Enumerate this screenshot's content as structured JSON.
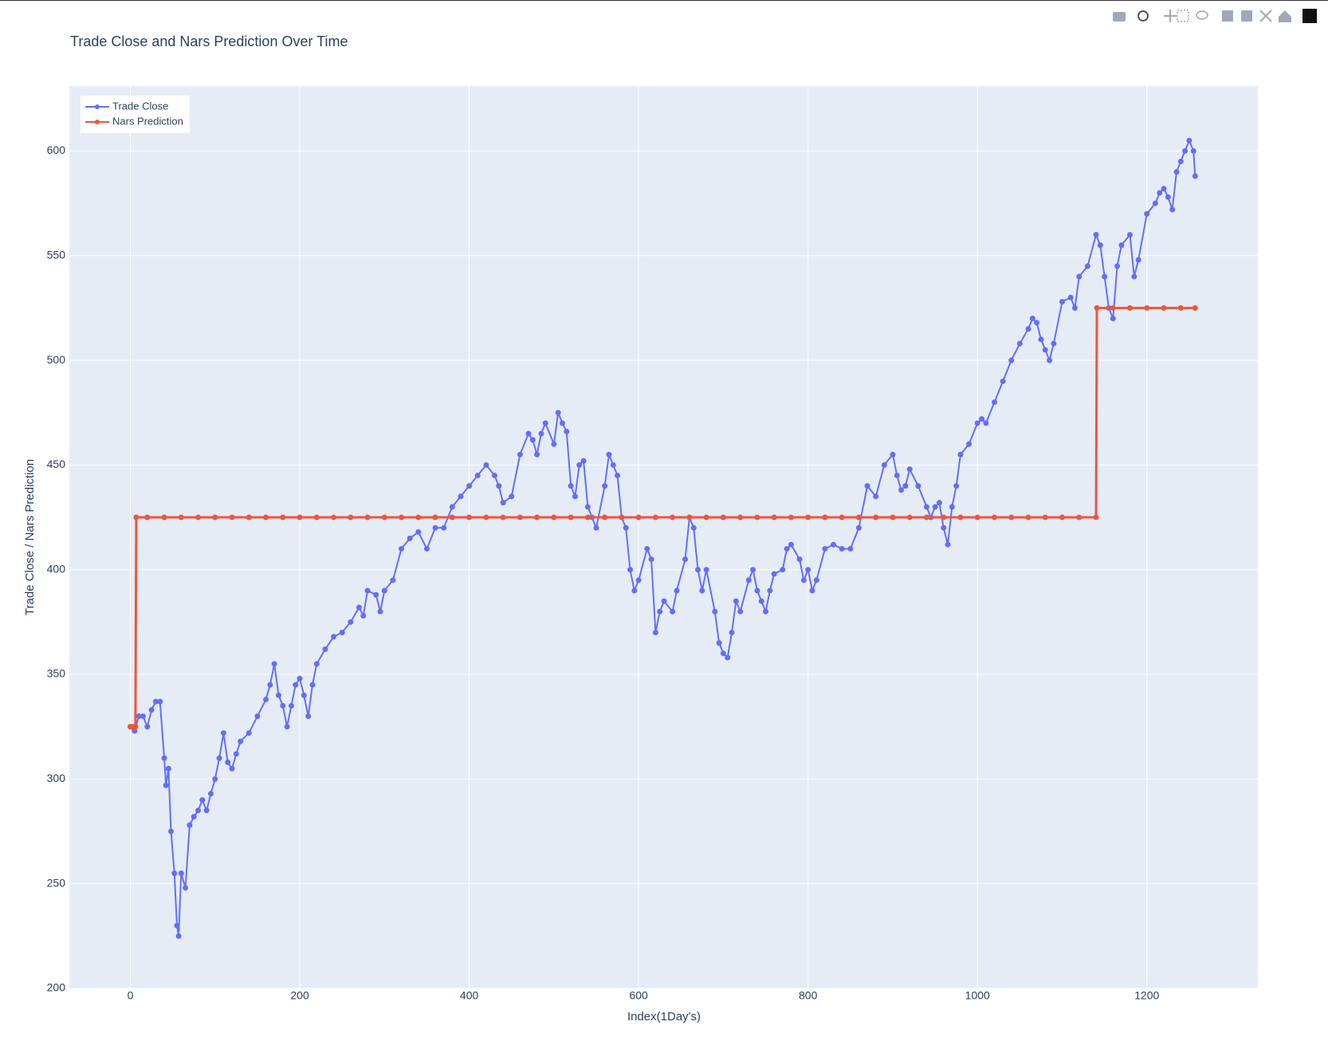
{
  "chart_data": {
    "type": "line",
    "title": "Trade Close and Nars Prediction Over Time",
    "x_label": "Index(1Day's)",
    "y_label": "Trade Close / Nars Prediction",
    "xlim": [
      -72,
      1331
    ],
    "xticks": [
      0,
      200,
      400,
      600,
      800,
      1000,
      1200
    ],
    "ylim": [
      200,
      631
    ],
    "yticks": [
      200,
      250,
      300,
      350,
      400,
      450,
      500,
      550,
      600
    ],
    "grid": true,
    "legend": "top-left",
    "series": [
      {
        "name": "Trade Close",
        "color": "#636efa",
        "x": [
          0,
          5,
          10,
          15,
          20,
          25,
          30,
          35,
          40,
          42,
          45,
          48,
          52,
          55,
          57,
          60,
          65,
          70,
          75,
          80,
          85,
          90,
          95,
          100,
          105,
          110,
          115,
          120,
          125,
          130,
          140,
          150,
          160,
          165,
          170,
          175,
          180,
          185,
          190,
          195,
          200,
          205,
          210,
          215,
          220,
          230,
          240,
          250,
          260,
          270,
          275,
          280,
          290,
          295,
          300,
          310,
          320,
          330,
          340,
          350,
          360,
          370,
          380,
          390,
          400,
          410,
          420,
          430,
          435,
          440,
          450,
          460,
          470,
          475,
          480,
          485,
          490,
          500,
          505,
          510,
          515,
          520,
          525,
          530,
          535,
          540,
          545,
          550,
          560,
          565,
          570,
          575,
          580,
          585,
          590,
          595,
          600,
          610,
          615,
          620,
          625,
          630,
          640,
          645,
          655,
          660,
          665,
          670,
          675,
          680,
          690,
          695,
          700,
          705,
          710,
          715,
          720,
          730,
          735,
          740,
          745,
          750,
          755,
          760,
          770,
          775,
          780,
          790,
          795,
          800,
          805,
          810,
          820,
          830,
          840,
          850,
          860,
          870,
          880,
          890,
          900,
          905,
          910,
          915,
          920,
          930,
          940,
          945,
          950,
          955,
          960,
          965,
          970,
          975,
          980,
          990,
          1000,
          1005,
          1010,
          1020,
          1030,
          1040,
          1050,
          1060,
          1065,
          1070,
          1075,
          1080,
          1085,
          1090,
          1100,
          1110,
          1115,
          1120,
          1130,
          1140,
          1145,
          1150,
          1155,
          1160,
          1165,
          1170,
          1180,
          1185,
          1190,
          1200,
          1210,
          1215,
          1220,
          1225,
          1230,
          1235,
          1240,
          1245,
          1250,
          1255,
          1257
        ],
        "values": [
          325,
          323,
          330,
          330,
          325,
          333,
          337,
          337,
          310,
          297,
          305,
          275,
          255,
          230,
          225,
          255,
          248,
          278,
          282,
          285,
          290,
          285,
          293,
          300,
          310,
          322,
          308,
          305,
          312,
          318,
          322,
          330,
          338,
          345,
          355,
          340,
          335,
          325,
          335,
          345,
          348,
          340,
          330,
          345,
          355,
          362,
          368,
          370,
          375,
          382,
          378,
          390,
          388,
          380,
          390,
          395,
          410,
          415,
          418,
          410,
          420,
          420,
          430,
          435,
          440,
          445,
          450,
          445,
          440,
          432,
          435,
          455,
          465,
          462,
          455,
          465,
          470,
          460,
          475,
          470,
          466,
          440,
          435,
          450,
          452,
          430,
          425,
          420,
          440,
          455,
          450,
          445,
          425,
          420,
          400,
          390,
          395,
          410,
          405,
          370,
          380,
          385,
          380,
          390,
          405,
          425,
          420,
          400,
          390,
          400,
          380,
          365,
          360,
          358,
          370,
          385,
          380,
          395,
          400,
          390,
          385,
          380,
          390,
          398,
          400,
          410,
          412,
          405,
          395,
          400,
          390,
          395,
          410,
          412,
          410,
          410,
          420,
          440,
          435,
          450,
          455,
          445,
          438,
          440,
          448,
          440,
          430,
          425,
          430,
          432,
          420,
          412,
          430,
          440,
          455,
          460,
          470,
          472,
          470,
          480,
          490,
          500,
          508,
          515,
          520,
          518,
          510,
          505,
          500,
          508,
          528,
          530,
          525,
          540,
          545,
          560,
          555,
          540,
          525,
          520,
          545,
          555,
          560,
          540,
          548,
          570,
          575,
          580,
          582,
          578,
          572,
          590,
          595,
          600,
          605,
          600,
          588
        ]
      },
      {
        "name": "Nars Prediction",
        "color": "#ef553b",
        "x": [
          0,
          2,
          4,
          6,
          7,
          20,
          40,
          60,
          80,
          100,
          120,
          140,
          160,
          180,
          200,
          220,
          240,
          260,
          280,
          300,
          320,
          340,
          360,
          380,
          400,
          420,
          440,
          460,
          480,
          500,
          520,
          540,
          560,
          580,
          600,
          620,
          640,
          660,
          680,
          700,
          720,
          740,
          760,
          780,
          800,
          820,
          840,
          860,
          880,
          900,
          920,
          940,
          960,
          980,
          1000,
          1020,
          1040,
          1060,
          1080,
          1100,
          1120,
          1140,
          1141,
          1160,
          1180,
          1200,
          1220,
          1240,
          1257
        ],
        "values": [
          325,
          325,
          325,
          325,
          425,
          425,
          425,
          425,
          425,
          425,
          425,
          425,
          425,
          425,
          425,
          425,
          425,
          425,
          425,
          425,
          425,
          425,
          425,
          425,
          425,
          425,
          425,
          425,
          425,
          425,
          425,
          425,
          425,
          425,
          425,
          425,
          425,
          425,
          425,
          425,
          425,
          425,
          425,
          425,
          425,
          425,
          425,
          425,
          425,
          425,
          425,
          425,
          425,
          425,
          425,
          425,
          425,
          425,
          425,
          425,
          425,
          425,
          525,
          525,
          525,
          525,
          525,
          525,
          525
        ]
      }
    ]
  }
}
